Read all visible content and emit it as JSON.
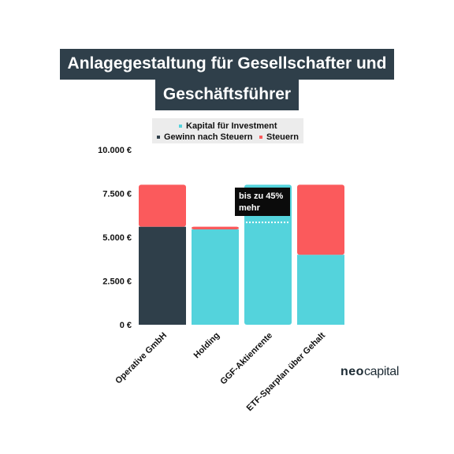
{
  "title": {
    "line1": "Anlagegestaltung für Gesellschafter und",
    "line2": "Geschäftsführer"
  },
  "legend": {
    "items": [
      {
        "label": "Kapital für Investment",
        "color": "#54d3dc"
      },
      {
        "label": "Gewinn nach Steuern",
        "color": "#2f3f4a"
      },
      {
        "label": "Steuern",
        "color": "#fb5a5c"
      }
    ]
  },
  "annotation": {
    "line1": "bis zu 45%",
    "line2": "mehr"
  },
  "brand": {
    "part1": "neo",
    "part2": "capital"
  },
  "chart_data": {
    "type": "bar",
    "stacked": true,
    "categories": [
      "Operative GmbH",
      "Holding",
      "GGF-Aktienrente",
      "ETF-Sparplan über Gehalt"
    ],
    "series": [
      {
        "name": "Kapital für Investment",
        "color": "#54d3dc",
        "values": [
          0,
          5450,
          8000,
          4000
        ]
      },
      {
        "name": "Gewinn nach Steuern",
        "color": "#2f3f4a",
        "values": [
          5600,
          0,
          0,
          0
        ]
      },
      {
        "name": "Steuern",
        "color": "#fb5a5c",
        "values": [
          2400,
          150,
          0,
          4000
        ]
      }
    ],
    "yticks": [
      "0 €",
      "2.500 €",
      "5.000 €",
      "7.500 €",
      "10.000 €"
    ],
    "ytick_values": [
      0,
      2500,
      5000,
      7500,
      10000
    ],
    "ylim": [
      0,
      10000
    ],
    "reference_line_value": 5850,
    "reference_line_category": "GGF-Aktienrente",
    "grid": false,
    "legend_position": "top"
  }
}
